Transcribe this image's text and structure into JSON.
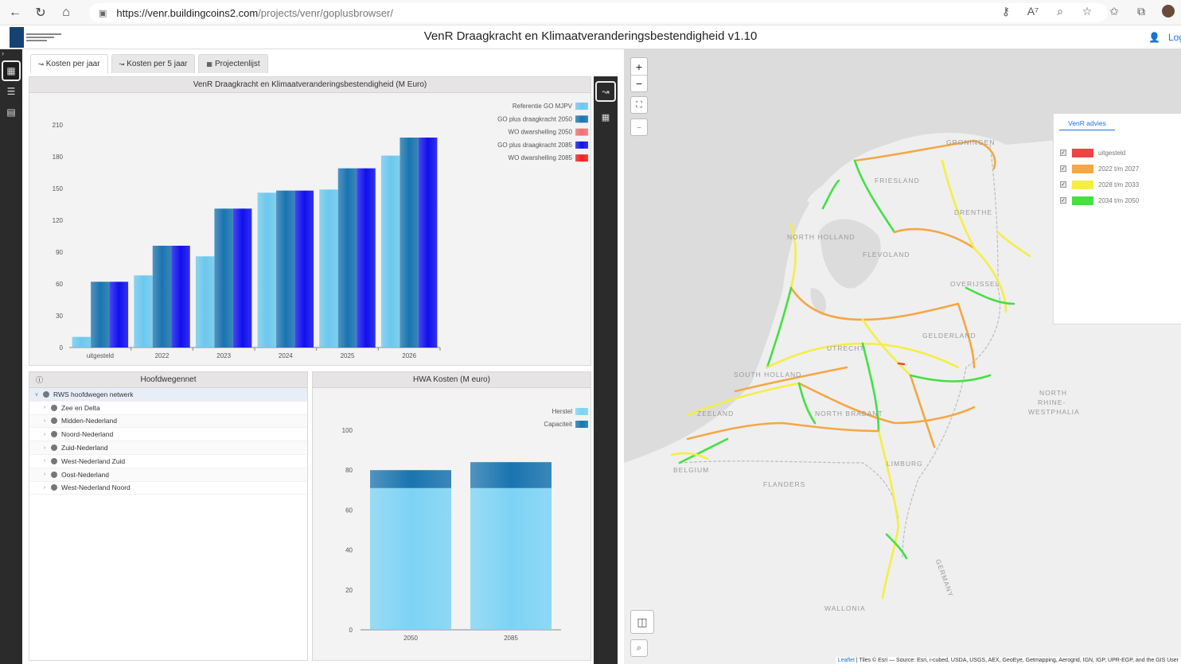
{
  "browser": {
    "url_host": "https://venr.buildingcoins2.com",
    "url_path": "/projects/venr/goplusbrowser/"
  },
  "app": {
    "title": "VenR Draagkracht en Klimaatveranderingsbestendigheid v1.10",
    "login_label": "Log"
  },
  "tabs": [
    {
      "label": "Kosten per jaar",
      "icon": "chart-icon",
      "active": true
    },
    {
      "label": "Kosten per 5 jaar",
      "icon": "chart-icon",
      "active": false
    },
    {
      "label": "Projectenlijst",
      "icon": "table-icon",
      "active": false
    }
  ],
  "main_chart_panel": {
    "title": "VenR Draagkracht en Klimaatveranderingsbestendigheid (M Euro)"
  },
  "tree_panel": {
    "title": "Hoofdwegennet",
    "root": "RWS hoofdwegen netwerk",
    "items": [
      "Zee en Delta",
      "Midden-Nederland",
      "Noord-Nederland",
      "Zuid-Nederland",
      "West-Nederland Zuid",
      "Oost-Nederland",
      "West-Nederland Noord"
    ]
  },
  "hwa_panel": {
    "title": "HWA Kosten (M euro)"
  },
  "chart_data": [
    {
      "type": "bar",
      "title": "VenR Draagkracht en Klimaatveranderingsbestendigheid (M Euro)",
      "categories": [
        "uitgesteld",
        "2022",
        "2023",
        "2024",
        "2025",
        "2026"
      ],
      "ylim": [
        0,
        210
      ],
      "yticks": [
        0,
        30,
        60,
        90,
        120,
        150,
        180,
        210
      ],
      "legend_position": "top-right",
      "series": [
        {
          "name": "Referentie GO MJPV",
          "color": "#6cc8ee",
          "values": [
            10,
            68,
            86,
            146,
            149,
            181
          ]
        },
        {
          "name": "GO plus draagkracht 2050",
          "color": "#1a74b0",
          "values": [
            62,
            96,
            131,
            148,
            169,
            198
          ]
        },
        {
          "name": "WO dwarshelling 2050",
          "color": "#f07070",
          "values": [
            0,
            0,
            0,
            0,
            0,
            0
          ]
        },
        {
          "name": "GO plus draagkracht 2085",
          "color": "#1010ee",
          "values": [
            62,
            96,
            131,
            148,
            169,
            198
          ]
        },
        {
          "name": "WO dwarshelling 2085",
          "color": "#ee2020",
          "values": [
            0,
            0,
            0,
            0,
            0,
            0
          ]
        }
      ]
    },
    {
      "type": "bar",
      "stacked": true,
      "title": "HWA Kosten (M euro)",
      "categories": [
        "2050",
        "2085"
      ],
      "ylim": [
        0,
        100
      ],
      "yticks": [
        0,
        20,
        40,
        60,
        80,
        100
      ],
      "legend_position": "top-right",
      "series": [
        {
          "name": "Herstel",
          "color": "#7dd3f5",
          "values": [
            71,
            71
          ]
        },
        {
          "name": "Capaciteit",
          "color": "#1a74b0",
          "values": [
            9,
            13
          ]
        }
      ]
    }
  ],
  "map": {
    "legend_title": "VenR advies",
    "legend_items": [
      {
        "label": "uitgesteld",
        "color": "#ee4444"
      },
      {
        "label": "2022 t/m 2027",
        "color": "#f5a742"
      },
      {
        "label": "2028 t/m 2033",
        "color": "#f5ee44"
      },
      {
        "label": "2034 t/m 2050",
        "color": "#44e044"
      }
    ],
    "labels": [
      "GRONINGEN",
      "FRIESLAND",
      "DRENTHE",
      "NORTH HOLLAND",
      "FLEVOLAND",
      "OVERIJSSEL",
      "GELDERLAND",
      "UTRECHT",
      "SOUTH HOLLAND",
      "ZEELAND",
      "NORTH BRABANT",
      "LIMBURG",
      "BELGIUM",
      "FLANDERS",
      "WALLONIA",
      "GERMANY",
      "NORTH",
      "RHINE-",
      "WESTPHALIA"
    ],
    "attribution_link": "Leaflet",
    "attribution_text": " | Tiles © Esri — Source: Esri, i-cubed, USDA, USGS, AEX, GeoEye, Getmapping, Aerogrid, IGN, IGP, UPR-EGP, and the GIS User"
  }
}
